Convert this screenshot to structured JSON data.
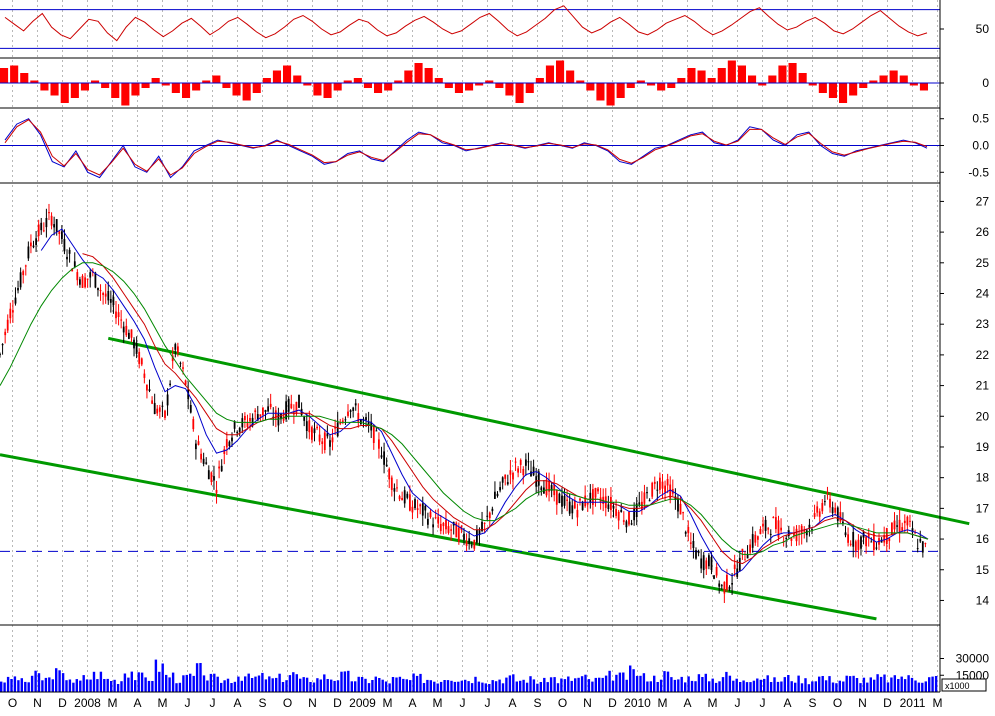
{
  "chart_data": [
    {
      "type": "line",
      "panel": "oscillator-top",
      "ylim": [
        20,
        80
      ],
      "yticks": [
        "50"
      ],
      "reference_lines": [
        70,
        30
      ],
      "color": "#cc0000",
      "series": [
        {
          "values": [
            62,
            55,
            48,
            58,
            66,
            52,
            44,
            40,
            50,
            60,
            58,
            46,
            38,
            52,
            62,
            57,
            49,
            42,
            48,
            56,
            61,
            53,
            44,
            50,
            58,
            62,
            55,
            47,
            41,
            45,
            52,
            60,
            64,
            58,
            50,
            44,
            47,
            54,
            60,
            57,
            49,
            43,
            46,
            53,
            59,
            63,
            57,
            50,
            45,
            48,
            55,
            62,
            66,
            58,
            49,
            43,
            47,
            54,
            61,
            70,
            74,
            63,
            52,
            46,
            50,
            57,
            62,
            55,
            47,
            44,
            49,
            56,
            60,
            64,
            58,
            50,
            44,
            48,
            54,
            61,
            68,
            72,
            63,
            55,
            49,
            52,
            58,
            62,
            56,
            48,
            45,
            50,
            57,
            64,
            69,
            61,
            53,
            47,
            43,
            46
          ]
        }
      ]
    },
    {
      "type": "bar",
      "panel": "histogram",
      "ylim": [
        -1,
        1
      ],
      "yticks": [
        "0"
      ],
      "color": "#ff0000",
      "series": [
        {
          "values": [
            0.6,
            0.7,
            0.4,
            0.1,
            -0.3,
            -0.5,
            -0.8,
            -0.6,
            -0.3,
            0.1,
            -0.2,
            -0.6,
            -0.9,
            -0.5,
            -0.2,
            0.2,
            -0.1,
            -0.4,
            -0.6,
            -0.3,
            0.1,
            0.3,
            -0.2,
            -0.5,
            -0.7,
            -0.4,
            0.2,
            0.5,
            0.7,
            0.3,
            -0.1,
            -0.5,
            -0.6,
            -0.3,
            0.1,
            0.2,
            -0.2,
            -0.4,
            -0.3,
            0.1,
            0.5,
            0.8,
            0.6,
            0.2,
            -0.2,
            -0.4,
            -0.3,
            -0.1,
            0.1,
            -0.2,
            -0.5,
            -0.8,
            -0.4,
            0.2,
            0.7,
            0.9,
            0.5,
            0.1,
            -0.3,
            -0.7,
            -0.9,
            -0.6,
            -0.2,
            0.1,
            -0.1,
            -0.3,
            -0.2,
            0.2,
            0.6,
            0.5,
            0.2,
            0.6,
            0.9,
            0.7,
            0.3,
            -0.1,
            0.3,
            0.7,
            0.8,
            0.4,
            -0.1,
            -0.4,
            -0.6,
            -0.8,
            -0.5,
            -0.2,
            0.1,
            0.3,
            0.5,
            0.3,
            -0.1,
            -0.3
          ]
        }
      ]
    },
    {
      "type": "line",
      "panel": "oscillator-bottom",
      "ylim": [
        -0.7,
        0.7
      ],
      "yticks": [
        "0.5",
        "0.0",
        "-0.5"
      ],
      "reference_lines": [
        0
      ],
      "series": [
        {
          "color": "#0000cc",
          "values": [
            0.1,
            0.4,
            0.5,
            0.2,
            -0.3,
            -0.4,
            -0.1,
            -0.5,
            -0.6,
            -0.3,
            0.0,
            -0.4,
            -0.5,
            -0.2,
            -0.6,
            -0.4,
            -0.1,
            0.0,
            0.1,
            0.05,
            0.0,
            -0.05,
            0.0,
            0.1,
            0.0,
            -0.1,
            -0.2,
            -0.35,
            -0.3,
            -0.15,
            -0.1,
            -0.25,
            -0.3,
            -0.1,
            0.1,
            0.25,
            0.2,
            0.05,
            0.0,
            -0.1,
            -0.05,
            0.0,
            0.05,
            0.0,
            -0.05,
            0.0,
            0.05,
            0.0,
            -0.05,
            0.05,
            0.0,
            -0.1,
            -0.3,
            -0.35,
            -0.2,
            -0.05,
            0.0,
            0.1,
            0.2,
            0.25,
            0.05,
            0.0,
            0.1,
            0.35,
            0.3,
            0.1,
            0.0,
            0.2,
            0.25,
            0.0,
            -0.15,
            -0.2,
            -0.1,
            -0.05,
            0.0,
            0.05,
            0.1,
            0.05,
            -0.05
          ]
        },
        {
          "color": "#cc0000",
          "values": [
            0.05,
            0.35,
            0.48,
            0.25,
            -0.2,
            -0.38,
            -0.15,
            -0.45,
            -0.55,
            -0.32,
            -0.05,
            -0.35,
            -0.48,
            -0.25,
            -0.55,
            -0.42,
            -0.15,
            -0.02,
            0.08,
            0.06,
            0.01,
            -0.04,
            -0.01,
            0.08,
            0.02,
            -0.08,
            -0.18,
            -0.32,
            -0.3,
            -0.18,
            -0.12,
            -0.22,
            -0.28,
            -0.12,
            0.06,
            0.22,
            0.2,
            0.08,
            0.01,
            -0.08,
            -0.06,
            -0.01,
            0.04,
            0.01,
            -0.04,
            -0.01,
            0.04,
            0.01,
            -0.04,
            0.03,
            0.01,
            -0.08,
            -0.26,
            -0.33,
            -0.22,
            -0.08,
            -0.01,
            0.08,
            0.18,
            0.22,
            0.08,
            0.01,
            0.08,
            0.3,
            0.3,
            0.14,
            0.02,
            0.16,
            0.23,
            0.04,
            -0.12,
            -0.18,
            -0.12,
            -0.06,
            -0.01,
            0.04,
            0.08,
            0.06,
            -0.02
          ]
        }
      ]
    },
    {
      "type": "candlestick",
      "panel": "price",
      "ylim": [
        13.2,
        27.6
      ],
      "yticks": [
        "27",
        "26",
        "25",
        "24",
        "23",
        "22",
        "21",
        "20",
        "19",
        "18",
        "17",
        "16",
        "15",
        "14"
      ],
      "dashed_reference": 15.6,
      "colors": {
        "up": "#000000",
        "down": "#ff0000",
        "ma_fast": "#0000cc",
        "ma_mid": "#cc0000",
        "ma_slow": "#008800",
        "channel": "#009900",
        "reference": "#0000cc"
      },
      "channel": {
        "upper": [
          [
            0,
            23.3
          ],
          [
            94,
            16.5
          ]
        ],
        "lower": [
          [
            -4,
            19.0
          ],
          [
            85,
            13.4
          ]
        ],
        "upper_visible_from": 10.5,
        "lower_visible_from": 0
      },
      "series": [
        {
          "name": "close",
          "values": [
            22.0,
            23.4,
            24.4,
            25.6,
            26.1,
            26.5,
            25.8,
            25.0,
            24.4,
            24.6,
            24.0,
            23.6,
            23.0,
            22.4,
            21.4,
            20.3,
            20.0,
            22.3,
            21.1,
            19.2,
            18.4,
            17.8,
            19.2,
            19.7,
            19.8,
            20.1,
            20.2,
            19.9,
            20.3,
            20.4,
            19.6,
            19.3,
            19.1,
            19.8,
            20.4,
            19.9,
            19.6,
            18.9,
            17.9,
            17.4,
            17.1,
            16.9,
            16.6,
            16.4,
            16.3,
            16.1,
            15.9,
            16.4,
            17.3,
            17.9,
            18.3,
            18.4,
            18.0,
            17.7,
            17.4,
            17.1,
            17.0,
            17.3,
            17.4,
            17.2,
            16.9,
            16.6,
            17.0,
            17.5,
            17.9,
            17.6,
            17.0,
            15.8,
            15.3,
            15.2,
            14.4,
            14.7,
            15.4,
            15.9,
            16.3,
            16.5,
            16.2,
            16.1,
            16.3,
            16.6,
            17.3,
            17.0,
            16.2,
            15.9,
            16.0,
            15.9,
            16.1,
            16.4,
            16.5,
            15.9,
            15.6
          ]
        },
        {
          "name": "ma-fast",
          "values": [
            null,
            null,
            null,
            null,
            25.4,
            25.9,
            26.1,
            25.6,
            25.1,
            24.7,
            24.5,
            24.1,
            23.6,
            23.1,
            22.5,
            21.6,
            20.8,
            21.0,
            20.9,
            20.3,
            19.4,
            18.8,
            18.9,
            19.2,
            19.6,
            19.9,
            20.1,
            20.1,
            20.1,
            20.2,
            20.0,
            19.7,
            19.4,
            19.5,
            19.8,
            19.9,
            19.8,
            19.5,
            18.8,
            18.1,
            17.5,
            17.2,
            16.9,
            16.7,
            16.5,
            16.3,
            16.1,
            16.2,
            16.6,
            17.2,
            17.7,
            18.1,
            18.2,
            18.0,
            17.7,
            17.4,
            17.2,
            17.2,
            17.2,
            17.2,
            17.1,
            16.9,
            16.9,
            17.1,
            17.4,
            17.6,
            17.4,
            16.8,
            16.1,
            15.5,
            15.0,
            14.8,
            15.0,
            15.4,
            15.8,
            16.1,
            16.2,
            16.2,
            16.3,
            16.4,
            16.7,
            16.8,
            16.6,
            16.3,
            16.1,
            15.9,
            16.0,
            16.2,
            16.3,
            16.2,
            16.0
          ]
        },
        {
          "name": "ma-mid",
          "values": [
            null,
            null,
            null,
            null,
            null,
            null,
            null,
            null,
            25.3,
            25.2,
            24.9,
            24.5,
            24.0,
            23.5,
            23.0,
            22.3,
            21.7,
            21.4,
            21.0,
            20.6,
            20.1,
            19.6,
            19.4,
            19.4,
            19.6,
            19.8,
            19.9,
            20.0,
            20.1,
            20.1,
            20.1,
            19.9,
            19.7,
            19.6,
            19.6,
            19.7,
            19.7,
            19.6,
            19.2,
            18.7,
            18.2,
            17.7,
            17.3,
            17.0,
            16.7,
            16.5,
            16.3,
            16.3,
            16.5,
            16.8,
            17.2,
            17.6,
            17.9,
            17.9,
            17.8,
            17.6,
            17.4,
            17.3,
            17.3,
            17.2,
            17.1,
            17.0,
            17.0,
            17.1,
            17.3,
            17.4,
            17.3,
            17.0,
            16.6,
            16.1,
            15.6,
            15.3,
            15.2,
            15.4,
            15.7,
            15.9,
            16.1,
            16.2,
            16.3,
            16.4,
            16.6,
            16.7,
            16.6,
            16.4,
            16.2,
            16.1,
            16.1,
            16.2,
            16.2,
            16.1,
            16.0
          ]
        },
        {
          "name": "ma-slow",
          "values": [
            21.0,
            21.6,
            22.3,
            23.0,
            23.6,
            24.1,
            24.5,
            24.8,
            25.0,
            25.0,
            24.9,
            24.7,
            24.4,
            24.0,
            23.5,
            22.9,
            22.3,
            21.8,
            21.3,
            20.9,
            20.5,
            20.1,
            19.9,
            19.8,
            19.8,
            19.8,
            19.9,
            19.9,
            20.0,
            20.0,
            20.0,
            20.0,
            19.9,
            19.8,
            19.8,
            19.8,
            19.7,
            19.6,
            19.4,
            19.1,
            18.7,
            18.3,
            17.9,
            17.5,
            17.2,
            16.9,
            16.7,
            16.6,
            16.6,
            16.8,
            17.0,
            17.3,
            17.5,
            17.6,
            17.6,
            17.5,
            17.4,
            17.3,
            17.3,
            17.2,
            17.2,
            17.1,
            17.1,
            17.1,
            17.2,
            17.3,
            17.3,
            17.1,
            16.8,
            16.4,
            16.0,
            15.7,
            15.5,
            15.5,
            15.6,
            15.8,
            15.9,
            16.1,
            16.2,
            16.3,
            16.4,
            16.5,
            16.5,
            16.4,
            16.3,
            16.2,
            16.2,
            16.2,
            16.2,
            16.1,
            16.0
          ]
        }
      ]
    },
    {
      "type": "bar",
      "panel": "volume",
      "ylim": [
        0,
        60000
      ],
      "yticks": [
        "30000",
        "15000"
      ],
      "multiplier_label": "x1000",
      "color": "#0000ff",
      "series": [
        {
          "values": [
            10000,
            12000,
            9000,
            14000,
            11000,
            16000,
            13000,
            9000,
            12000,
            15000,
            11000,
            10000,
            18000,
            13000,
            12000,
            22000,
            14000,
            11000,
            13000,
            19000,
            12000,
            10000,
            11000,
            14000,
            12000,
            13000,
            11000,
            12000,
            15000,
            10000,
            11000,
            13000,
            12000,
            14000,
            11000,
            10000,
            12000,
            9000,
            11000,
            10000,
            12000,
            11000,
            10000,
            13000,
            12000,
            11000,
            12000,
            10000,
            11000,
            12000,
            10000,
            11000,
            9000,
            12000,
            10000,
            11000,
            12000,
            10000,
            11000,
            14000,
            13000,
            17000,
            13000,
            12000,
            15000,
            11000,
            12000,
            13000,
            12000,
            11000,
            14000,
            10000,
            12000,
            13000,
            11000,
            10000,
            12000,
            11000,
            10000,
            13000,
            11000,
            10000,
            12000,
            11000,
            10000,
            12000,
            11000,
            13000,
            12000,
            11000,
            12000
          ]
        }
      ]
    }
  ],
  "x_axis": {
    "labels": [
      "O",
      "N",
      "D",
      "2008",
      "M",
      "A",
      "M",
      "J",
      "J",
      "A",
      "S",
      "O",
      "N",
      "D",
      "2009",
      "M",
      "A",
      "M",
      "J",
      "J",
      "A",
      "S",
      "O",
      "N",
      "D",
      "2010",
      "M",
      "A",
      "M",
      "J",
      "J",
      "A",
      "S",
      "O",
      "N",
      "D",
      "2011",
      "M"
    ]
  }
}
